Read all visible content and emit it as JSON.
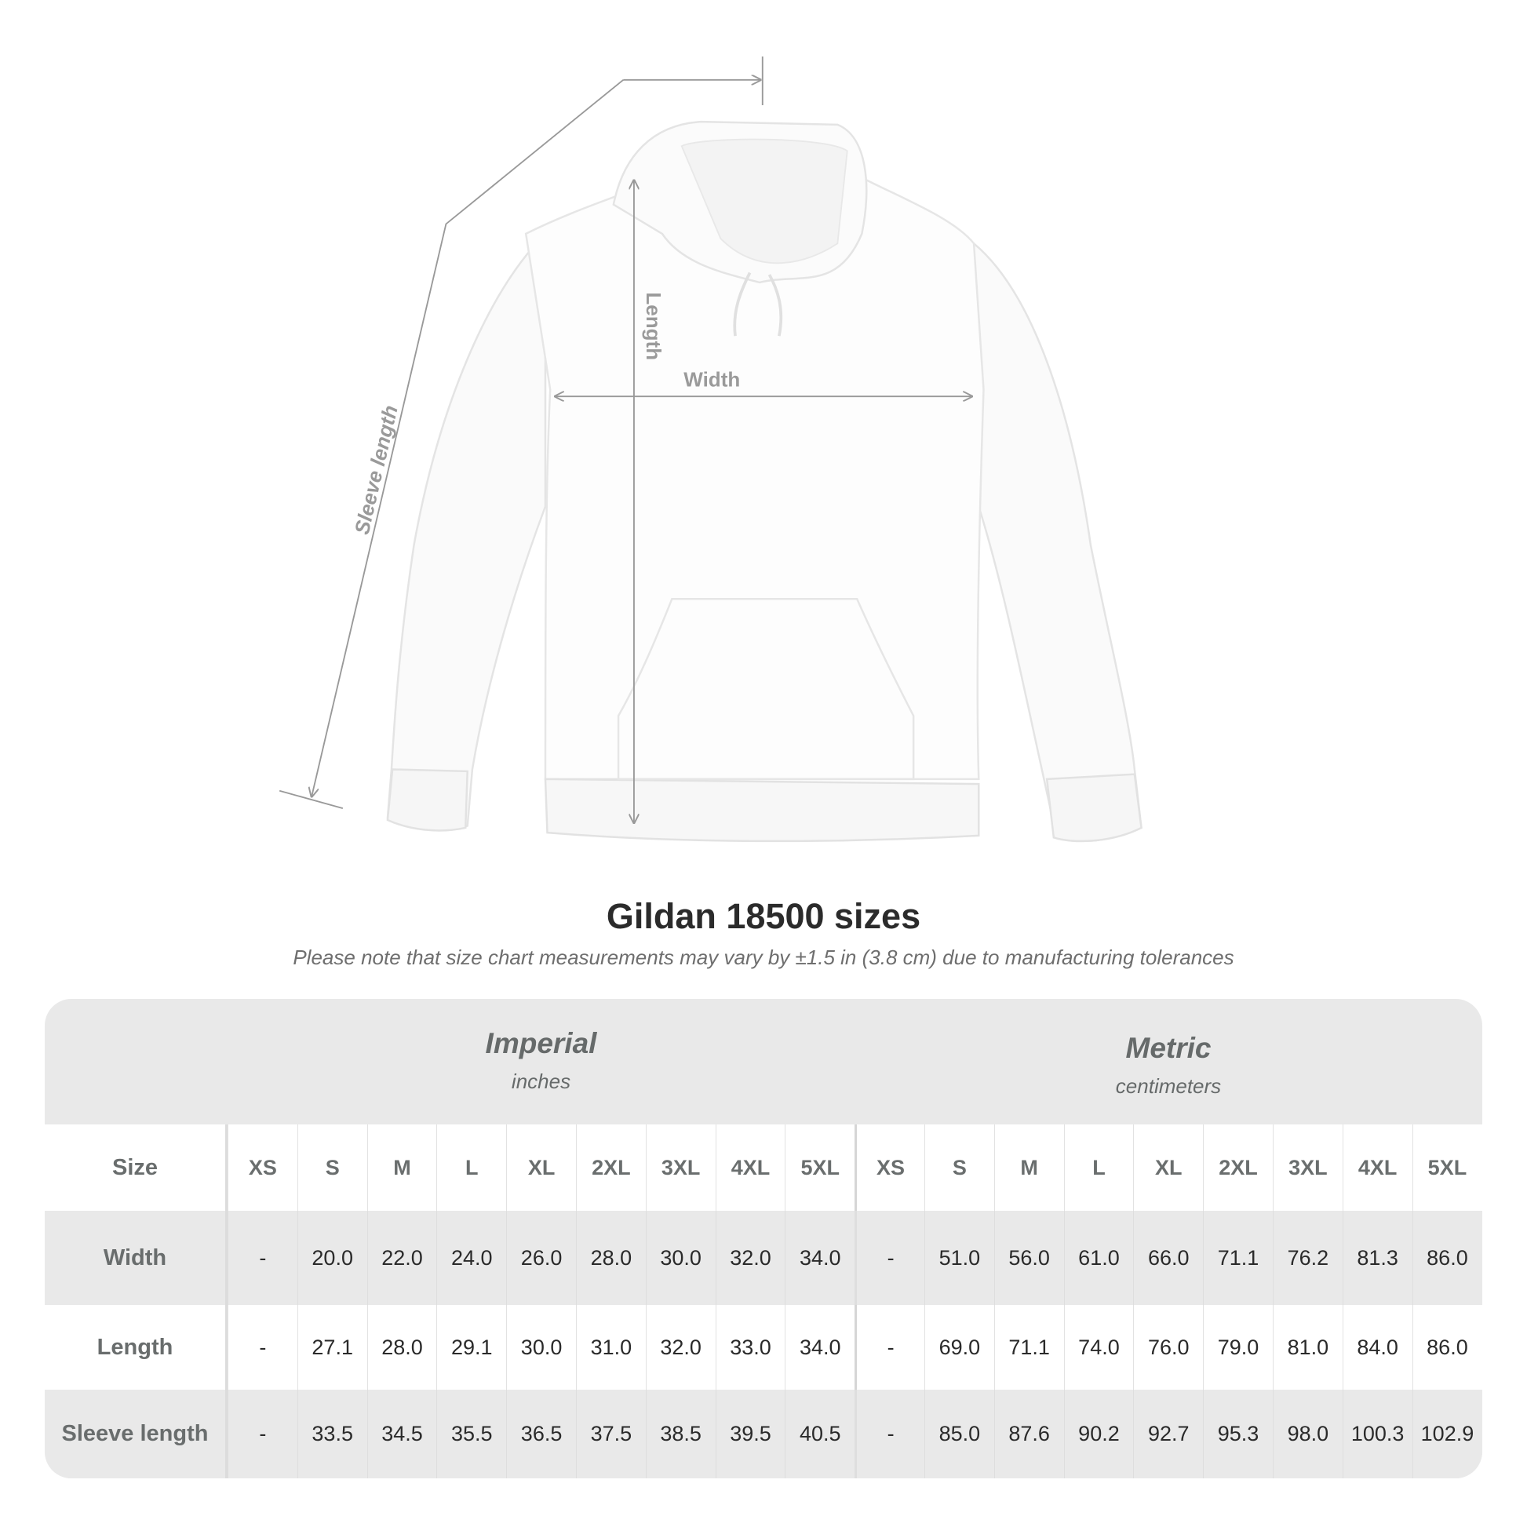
{
  "diagram": {
    "labels": {
      "sleeve": "Sleeve length",
      "length": "Length",
      "width": "Width"
    }
  },
  "title": "Gildan 18500 sizes",
  "note": "Please note that size chart measurements may vary by ±1.5 in (3.8 cm) due to manufacturing tolerances",
  "table": {
    "imperial": {
      "label": "Imperial",
      "unit": "inches"
    },
    "metric": {
      "label": "Metric",
      "unit": "centimeters"
    },
    "size_label": "Size",
    "sizes": [
      "XS",
      "S",
      "M",
      "L",
      "XL",
      "2XL",
      "3XL",
      "4XL",
      "5XL"
    ],
    "rows": [
      {
        "label": "Width",
        "imperial": [
          "-",
          "20.0",
          "22.0",
          "24.0",
          "26.0",
          "28.0",
          "30.0",
          "32.0",
          "34.0"
        ],
        "metric": [
          "-",
          "51.0",
          "56.0",
          "61.0",
          "66.0",
          "71.1",
          "76.2",
          "81.3",
          "86.0"
        ]
      },
      {
        "label": "Length",
        "imperial": [
          "-",
          "27.1",
          "28.0",
          "29.1",
          "30.0",
          "31.0",
          "32.0",
          "33.0",
          "34.0"
        ],
        "metric": [
          "-",
          "69.0",
          "71.1",
          "74.0",
          "76.0",
          "79.0",
          "81.0",
          "84.0",
          "86.0"
        ]
      },
      {
        "label": "Sleeve length",
        "imperial": [
          "-",
          "33.5",
          "34.5",
          "35.5",
          "36.5",
          "37.5",
          "38.5",
          "39.5",
          "40.5"
        ],
        "metric": [
          "-",
          "85.0",
          "87.6",
          "90.2",
          "92.7",
          "95.3",
          "98.0",
          "100.3",
          "102.9"
        ]
      }
    ]
  }
}
